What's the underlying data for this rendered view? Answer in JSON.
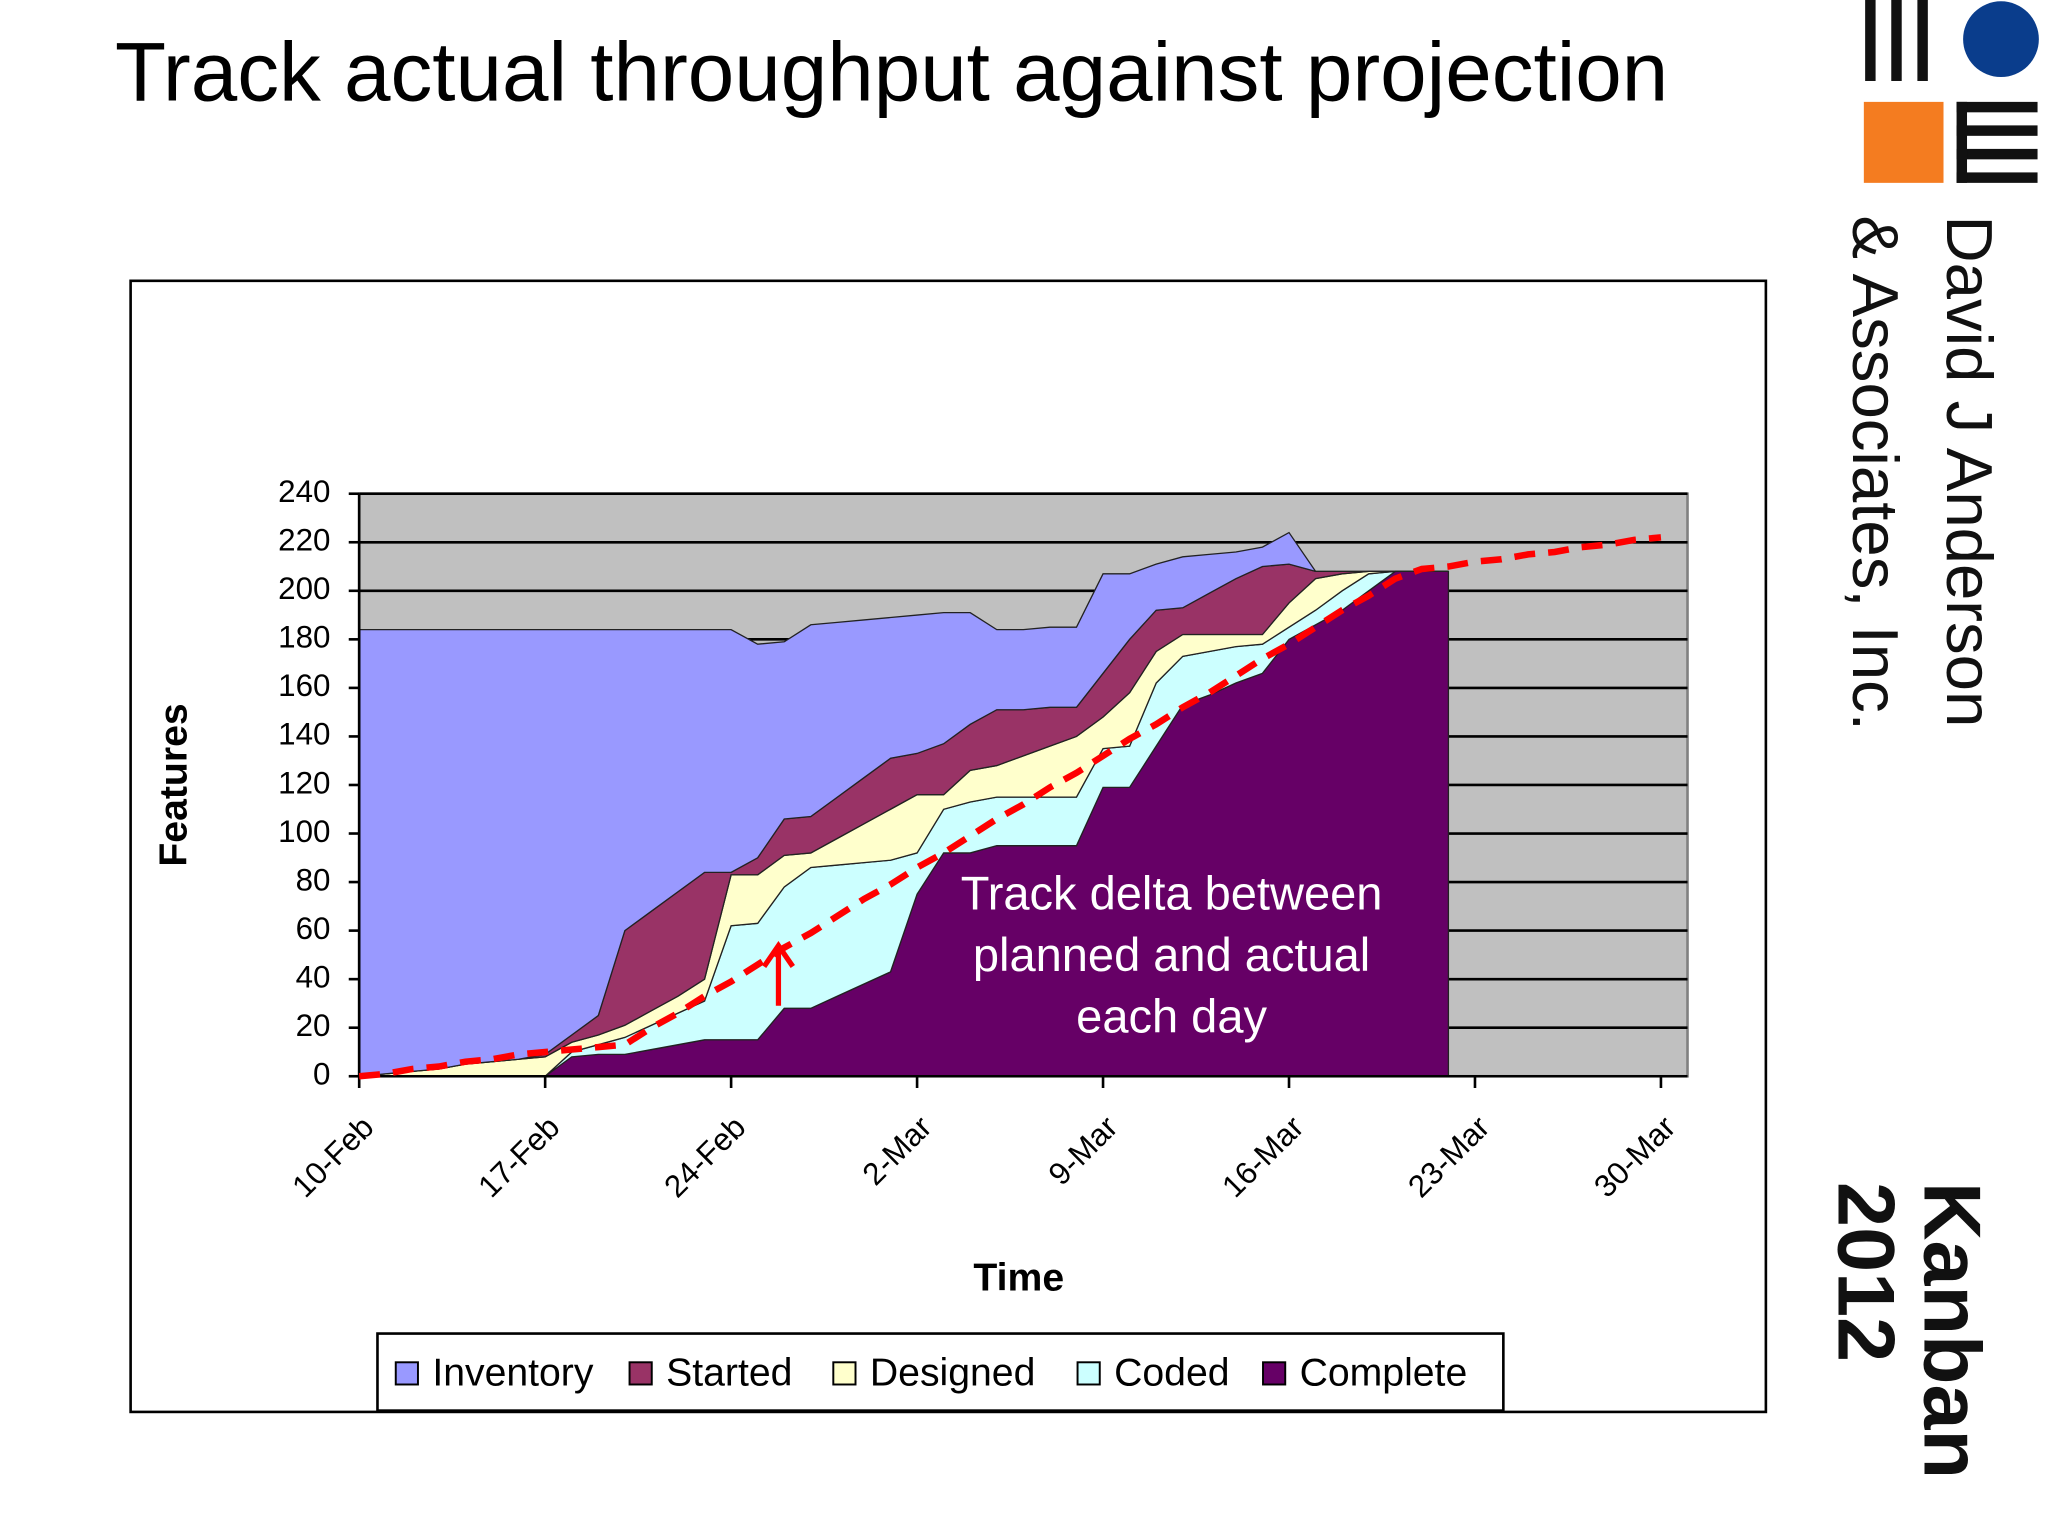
{
  "chart_data": {
    "type": "stacked_area",
    "title": "Track actual throughput against projection",
    "x_label": "Time",
    "y_label": "Features",
    "annotation": [
      "Track delta between",
      "planned and actual",
      "each day"
    ],
    "categories": [
      "10-Feb",
      null,
      null,
      null,
      null,
      null,
      null,
      "17-Feb",
      null,
      null,
      null,
      null,
      null,
      null,
      "24-Feb",
      null,
      null,
      null,
      null,
      null,
      null,
      "2-Mar",
      null,
      null,
      null,
      null,
      null,
      null,
      "9-Mar",
      null,
      null,
      null,
      null,
      null,
      null,
      "16-Mar",
      null,
      null,
      null,
      null,
      null,
      null,
      "23-Mar",
      null,
      null,
      null,
      null,
      null,
      null,
      "30-Mar",
      null
    ],
    "series": [
      {
        "name": "Inventory",
        "color": "#9999ff",
        "values": [
          184,
          183,
          182,
          181,
          179,
          178,
          177,
          175,
          167,
          159,
          124,
          116,
          108,
          100,
          100,
          88,
          73,
          79,
          72,
          65,
          58,
          57,
          54,
          46,
          33,
          33,
          33,
          33,
          41,
          27,
          19,
          21,
          16,
          11,
          8,
          13,
          0,
          0,
          0,
          0,
          0,
          0,
          null,
          null,
          null,
          null,
          null,
          null,
          null,
          null,
          null
        ]
      },
      {
        "name": "Started",
        "color": "#993366",
        "values": [
          0,
          0,
          0,
          0,
          0,
          0,
          0,
          1,
          3,
          8,
          39,
          41,
          43,
          44,
          1,
          7,
          15,
          15,
          17,
          19,
          21,
          17,
          21,
          19,
          23,
          19,
          16,
          12,
          18,
          22,
          17,
          11,
          17,
          23,
          28,
          16,
          3,
          1,
          0,
          0,
          0,
          0,
          null,
          null,
          null,
          null,
          null,
          null,
          null,
          null,
          null
        ]
      },
      {
        "name": "Designed",
        "color": "#ffffcc",
        "values": [
          0,
          1,
          2,
          3,
          5,
          6,
          7,
          8,
          4,
          4,
          5,
          6,
          7,
          9,
          21,
          20,
          13,
          6,
          11,
          16,
          21,
          24,
          6,
          13,
          13,
          17,
          21,
          25,
          13,
          22,
          13,
          9,
          7,
          5,
          4,
          10,
          13,
          7,
          1,
          0,
          0,
          0,
          null,
          null,
          null,
          null,
          null,
          null,
          null,
          null,
          null
        ]
      },
      {
        "name": "Coded",
        "color": "#ccffff",
        "values": [
          0,
          0,
          0,
          0,
          0,
          0,
          0,
          0,
          2,
          4,
          7,
          10,
          13,
          16,
          47,
          48,
          50,
          58,
          54,
          50,
          46,
          17,
          18,
          21,
          20,
          20,
          20,
          20,
          16,
          17,
          26,
          20,
          18,
          15,
          12,
          5,
          6,
          8,
          7,
          0,
          0,
          0,
          null,
          null,
          null,
          null,
          null,
          null,
          null,
          null,
          null
        ]
      },
      {
        "name": "Complete",
        "color": "#660066",
        "values": [
          0,
          0,
          0,
          0,
          0,
          0,
          0,
          0,
          8,
          9,
          9,
          11,
          13,
          15,
          15,
          15,
          28,
          28,
          33,
          38,
          43,
          75,
          92,
          92,
          95,
          95,
          95,
          95,
          119,
          119,
          136,
          153,
          157,
          162,
          166,
          180,
          186,
          192,
          200,
          208,
          208,
          208,
          null,
          null,
          null,
          null,
          null,
          null,
          null,
          null,
          null
        ]
      }
    ],
    "projection": {
      "color": "#ff0000",
      "values": [
        0,
        1,
        3,
        4,
        6,
        7,
        9,
        10,
        11,
        12,
        13,
        20,
        26,
        33,
        39,
        46,
        53,
        59,
        66,
        73,
        79,
        86,
        92,
        99,
        106,
        112,
        119,
        125,
        132,
        139,
        145,
        152,
        158,
        165,
        172,
        178,
        185,
        192,
        198,
        205,
        209,
        210,
        212,
        213,
        215,
        216,
        218,
        219,
        221,
        222,
        null
      ]
    },
    "ylim": [
      0,
      240
    ],
    "yticks": [
      0,
      20,
      40,
      60,
      80,
      100,
      120,
      140,
      160,
      180,
      200,
      220,
      240
    ],
    "grid": true,
    "plot_background": "#c0c0c0",
    "legend": "bottom"
  },
  "branding": {
    "company": [
      "David J Anderson",
      "& Associates, Inc."
    ],
    "event": [
      "Kanban",
      "2012"
    ]
  }
}
